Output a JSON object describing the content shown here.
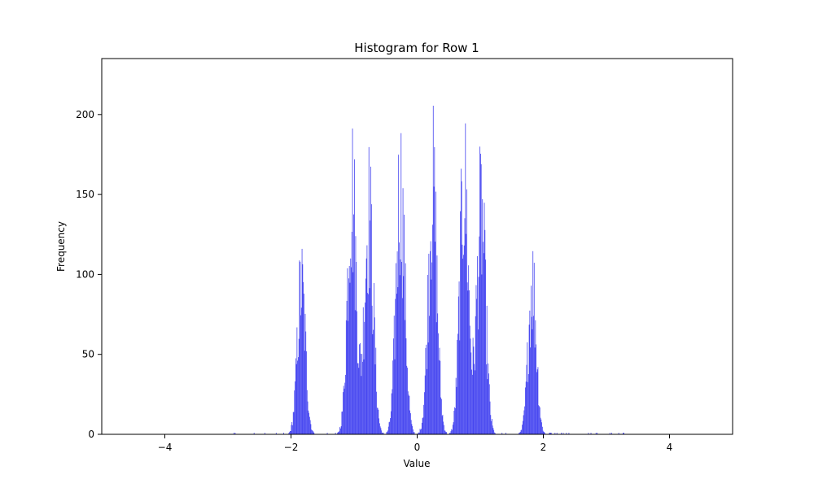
{
  "chart_data": {
    "type": "histogram",
    "title": "Histogram for Row 1",
    "xlabel": "Value",
    "ylabel": "Frequency",
    "xlim": [
      -5.0,
      5.0
    ],
    "ylim": [
      0,
      235
    ],
    "xticks": [
      -4,
      -2,
      0,
      2,
      4
    ],
    "xtick_labels": [
      "−4",
      "−2",
      "0",
      "2",
      "4"
    ],
    "yticks": [
      0,
      50,
      100,
      150,
      200
    ],
    "ytick_labels": [
      "0",
      "50",
      "100",
      "150",
      "200"
    ],
    "bar_color": "#4646f0",
    "bin_width": 0.01,
    "grid": false,
    "legend": "none",
    "peaks": [
      {
        "center": -1.84,
        "height": 120,
        "width": 0.065
      },
      {
        "center": -1.04,
        "height": 199,
        "width": 0.07
      },
      {
        "center": -0.77,
        "height": 179,
        "width": 0.07
      },
      {
        "center": -0.27,
        "height": 198,
        "width": 0.07
      },
      {
        "center": 0.24,
        "height": 198,
        "width": 0.07
      },
      {
        "center": 0.74,
        "height": 202,
        "width": 0.07
      },
      {
        "center": 1.01,
        "height": 177,
        "width": 0.07
      },
      {
        "center": 1.82,
        "height": 123,
        "width": 0.065
      }
    ]
  }
}
